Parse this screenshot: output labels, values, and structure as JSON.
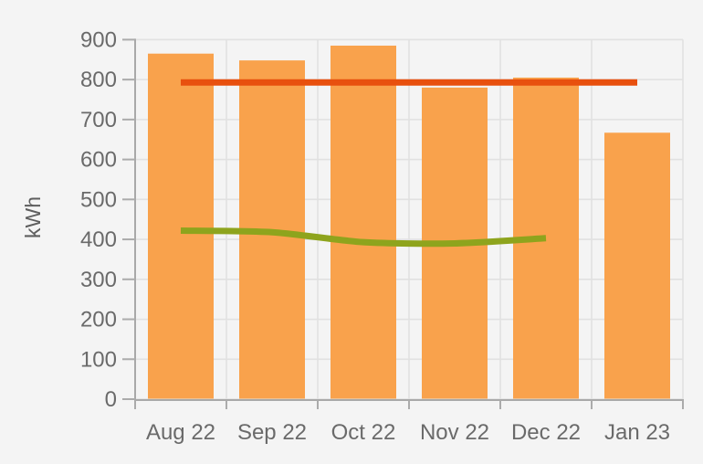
{
  "page": {
    "background": "#f4f4f4"
  },
  "chart_data": {
    "type": "bar",
    "title": "",
    "xlabel": "",
    "ylabel": "kWh",
    "categories": [
      "Aug 22",
      "Sep 22",
      "Oct 22",
      "Nov 22",
      "Dec 22",
      "Jan 23"
    ],
    "series": [
      {
        "name": "monthly-energy-bars",
        "type": "bar",
        "color": "#f9a24c",
        "values": [
          865,
          848,
          885,
          780,
          805,
          667
        ]
      },
      {
        "name": "red-reference-line",
        "type": "line",
        "color": "#e8500e",
        "values": [
          793,
          793,
          793,
          793,
          793,
          793
        ]
      },
      {
        "name": "green-trend-line",
        "type": "line",
        "color": "#8ea41d",
        "values": [
          422,
          418,
          393,
          390,
          403,
          null
        ]
      }
    ],
    "ylim": [
      0,
      900
    ],
    "ytick_step": 100,
    "ytick_labels": [
      "0",
      "100",
      "200",
      "300",
      "400",
      "500",
      "600",
      "700",
      "800",
      "900"
    ],
    "grid": true,
    "legend": false,
    "style": {
      "grid_color": "#e1e1e1",
      "axis_color": "#a9a9a9",
      "tick_color": "#ababab",
      "tick_label_color": "#6a6a6a",
      "axis_title_color": "#5e5e5e",
      "background": "#f4f4f4"
    }
  }
}
